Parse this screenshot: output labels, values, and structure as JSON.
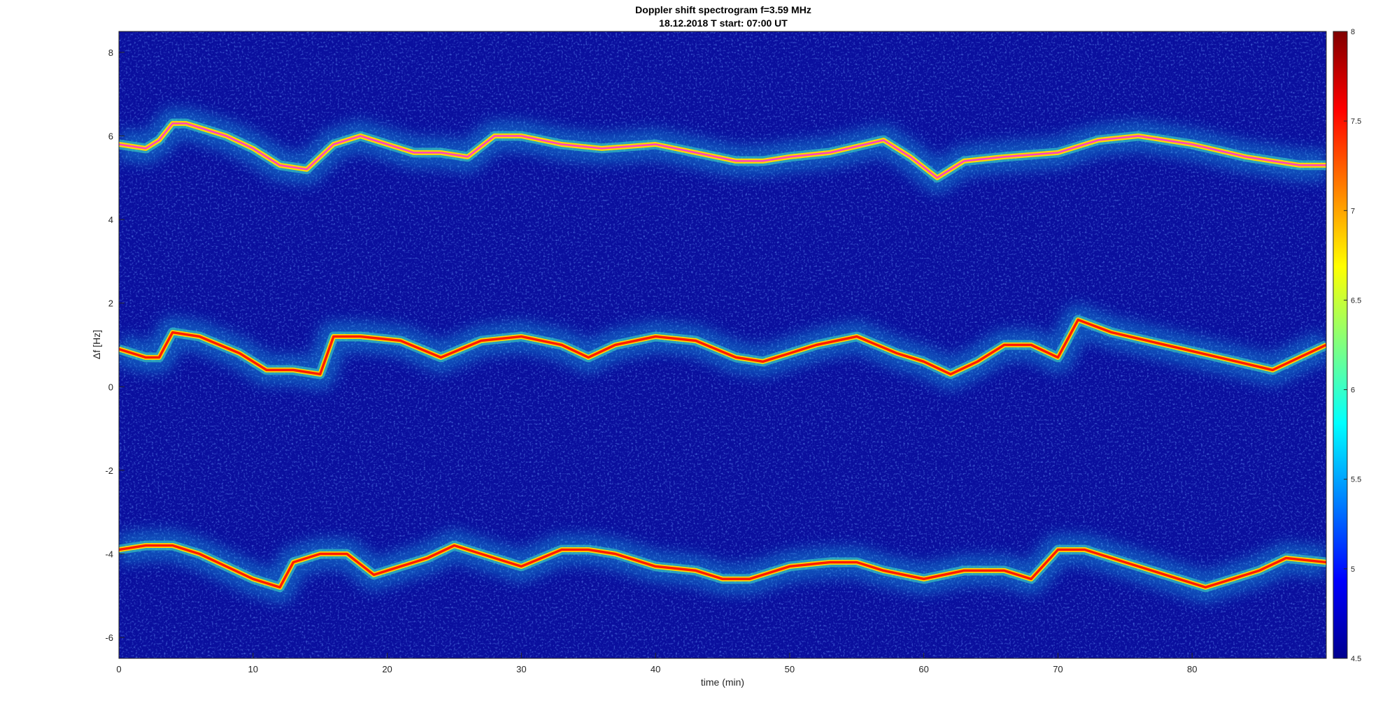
{
  "chart_data": {
    "type": "heatmap",
    "title": "Doppler shift spectrogram f=3.59 MHz",
    "subtitle": "18.12.2018   T start: 07:00 UT",
    "xlabel": "time (min)",
    "ylabel": "Δf [Hz]",
    "xlim": [
      0,
      90
    ],
    "ylim": [
      -6.5,
      8.5
    ],
    "xticks": [
      "0",
      "10",
      "20",
      "30",
      "40",
      "50",
      "60",
      "70",
      "80"
    ],
    "yticks": [
      "-6",
      "-4",
      "-2",
      "0",
      "2",
      "4",
      "6",
      "8"
    ],
    "colorbar": {
      "colormap": "jet",
      "range": [
        4.5,
        8
      ],
      "ticks": [
        "4.5",
        "5",
        "5.5",
        "6",
        "6.5",
        "7",
        "7.5",
        "8"
      ],
      "placement": "right"
    },
    "series": [
      {
        "x": [
          0,
          2,
          3,
          4,
          5,
          8,
          10,
          12,
          14,
          16,
          18,
          20,
          22,
          24,
          26,
          28,
          30,
          33,
          36,
          40,
          43,
          46,
          48,
          50,
          53,
          57,
          59,
          61,
          63,
          66,
          70,
          73,
          76,
          80,
          84,
          88,
          90
        ],
        "values": [
          5.8,
          5.7,
          5.9,
          6.3,
          6.3,
          6.0,
          5.7,
          5.3,
          5.2,
          5.8,
          6.0,
          5.8,
          5.6,
          5.6,
          5.5,
          6.0,
          6.0,
          5.8,
          5.7,
          5.8,
          5.6,
          5.4,
          5.4,
          5.5,
          5.6,
          5.9,
          5.5,
          5.0,
          5.4,
          5.5,
          5.6,
          5.9,
          6.0,
          5.8,
          5.5,
          5.3,
          5.3
        ]
      },
      {
        "x": [
          0,
          2,
          3,
          4,
          6,
          9,
          11,
          13,
          15,
          16,
          18,
          21,
          24,
          27,
          30,
          33,
          35,
          37,
          40,
          43,
          46,
          48,
          50,
          52,
          55,
          58,
          60,
          62,
          64,
          66,
          68,
          70,
          71.5,
          74,
          78,
          82,
          86,
          88,
          90
        ],
        "values": [
          0.9,
          0.7,
          0.7,
          1.3,
          1.2,
          0.8,
          0.4,
          0.4,
          0.3,
          1.2,
          1.2,
          1.1,
          0.7,
          1.1,
          1.2,
          1.0,
          0.7,
          1.0,
          1.2,
          1.1,
          0.7,
          0.6,
          0.8,
          1.0,
          1.2,
          0.8,
          0.6,
          0.3,
          0.6,
          1.0,
          1.0,
          0.7,
          1.6,
          1.3,
          1.0,
          0.7,
          0.4,
          0.7,
          1.0
        ]
      },
      {
        "x": [
          0,
          2,
          4,
          6,
          8,
          10,
          12,
          13,
          15,
          17,
          19,
          21,
          23,
          25,
          28,
          30,
          33,
          35,
          37,
          40,
          43,
          45,
          47,
          50,
          53,
          55,
          57,
          60,
          63,
          66,
          68,
          70,
          72,
          75,
          78,
          81,
          83,
          85,
          87,
          90
        ],
        "values": [
          -3.9,
          -3.8,
          -3.8,
          -4.0,
          -4.3,
          -4.6,
          -4.8,
          -4.2,
          -4.0,
          -4.0,
          -4.5,
          -4.3,
          -4.1,
          -3.8,
          -4.1,
          -4.3,
          -3.9,
          -3.9,
          -4.0,
          -4.3,
          -4.4,
          -4.6,
          -4.6,
          -4.3,
          -4.2,
          -4.2,
          -4.4,
          -4.6,
          -4.4,
          -4.4,
          -4.6,
          -3.9,
          -3.9,
          -4.2,
          -4.5,
          -4.8,
          -4.6,
          -4.4,
          -4.1,
          -4.2
        ]
      }
    ]
  }
}
